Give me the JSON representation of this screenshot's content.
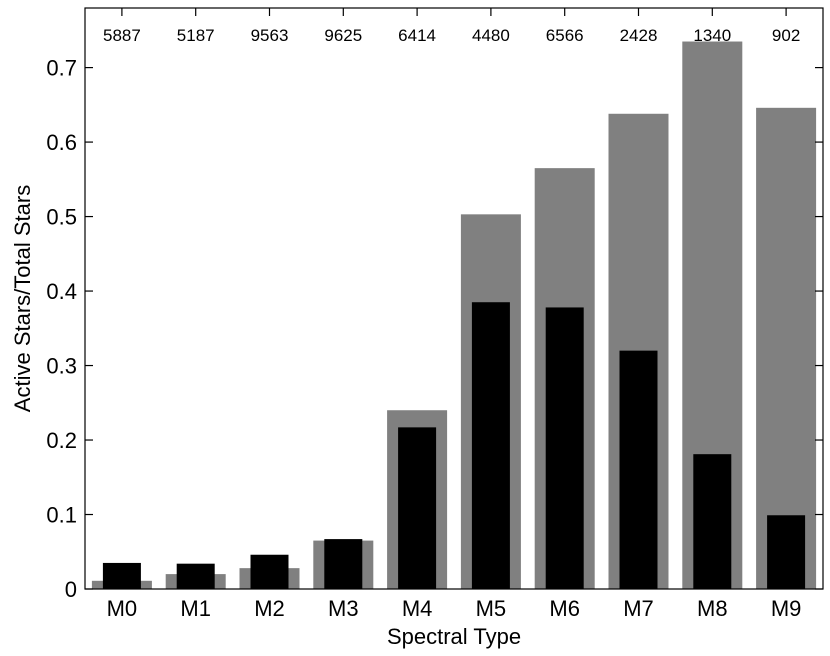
{
  "chart_data": {
    "type": "bar",
    "categories": [
      "M0",
      "M1",
      "M2",
      "M3",
      "M4",
      "M5",
      "M6",
      "M7",
      "M8",
      "M9"
    ],
    "series": [
      {
        "values": [
          0.011,
          0.02,
          0.028,
          0.065,
          0.24,
          0.503,
          0.565,
          0.638,
          0.735,
          0.646
        ],
        "color": "#808080"
      },
      {
        "values": [
          0.035,
          0.034,
          0.046,
          0.067,
          0.217,
          0.385,
          0.378,
          0.32,
          0.181,
          0.099
        ],
        "color": "#000000"
      }
    ],
    "counts": [
      "5887",
      "5187",
      "9563",
      "9625",
      "6414",
      "4480",
      "6566",
      "2428",
      "1340",
      "902"
    ],
    "xlabel": "Spectral Type",
    "ylabel": "Active Stars/Total Stars",
    "ylim": [
      0,
      0.78
    ],
    "yticks": [
      "0",
      "0.1",
      "0.2",
      "0.3",
      "0.4",
      "0.5",
      "0.6",
      "0.7"
    ],
    "grid": false
  }
}
